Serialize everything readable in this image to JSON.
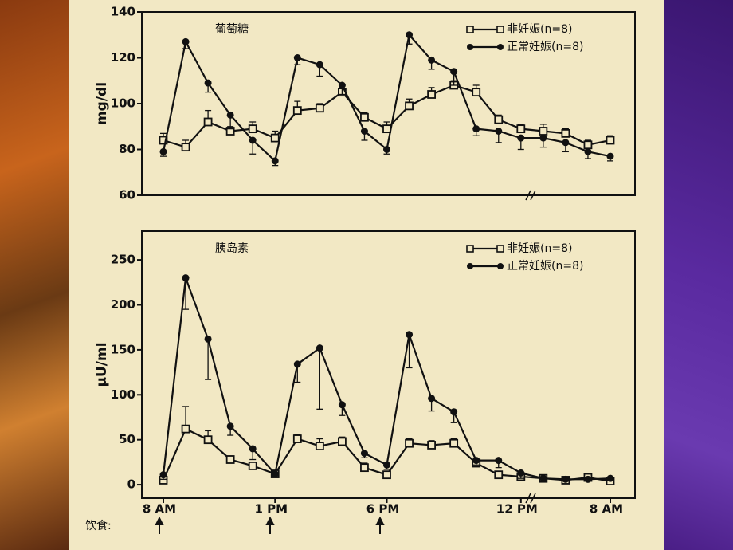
{
  "chart_data": [
    {
      "type": "line",
      "annotation": "葡萄糖",
      "y_label": "mg/dl",
      "categories": [
        null,
        null,
        null,
        null,
        null,
        null,
        null,
        null,
        null,
        null,
        null,
        null,
        null,
        null,
        null,
        null,
        null,
        null,
        null,
        null,
        null
      ],
      "ylim": [
        60,
        140
      ],
      "yticks": [
        60,
        80,
        100,
        120,
        140
      ],
      "series": [
        {
          "name": "非妊娠(n=8)",
          "color": "#111111",
          "marker": "square-open",
          "values": [
            84,
            81,
            92,
            88,
            89,
            85,
            97,
            98,
            105,
            94,
            89,
            99,
            104,
            108,
            105,
            93,
            89,
            88,
            87,
            82,
            84
          ],
          "errors": [
            3,
            3,
            5,
            2,
            3,
            3,
            4,
            2,
            3,
            2,
            3,
            3,
            3,
            2,
            3,
            2,
            2,
            3,
            2,
            2,
            2
          ]
        },
        {
          "name": "正常妊娠(n=8)",
          "color": "#111111",
          "marker": "circle-filled",
          "values": [
            79,
            127,
            109,
            95,
            84,
            75,
            120,
            117,
            108,
            88,
            80,
            130,
            119,
            114,
            89,
            88,
            85,
            85,
            83,
            79,
            77
          ],
          "errors": [
            2,
            3,
            4,
            6,
            6,
            2,
            3,
            5,
            4,
            4,
            2,
            4,
            4,
            6,
            3,
            5,
            5,
            4,
            4,
            3,
            2
          ]
        }
      ]
    },
    {
      "type": "line",
      "annotation": "胰岛素",
      "y_label": "μU/ml",
      "meal_label": "饮食:",
      "categories": [
        "8 AM",
        null,
        null,
        null,
        null,
        "1 PM",
        null,
        null,
        null,
        null,
        "6 PM",
        null,
        null,
        null,
        null,
        null,
        "12 PM",
        null,
        null,
        null,
        "8 AM"
      ],
      "ylim": [
        -15,
        282
      ],
      "yticks": [
        0,
        50,
        100,
        150,
        200,
        250
      ],
      "series": [
        {
          "name": "非妊娠(n=8)",
          "color": "#111111",
          "marker": "square-open",
          "values": [
            5,
            62,
            50,
            28,
            21,
            12,
            51,
            43,
            48,
            19,
            11,
            46,
            44,
            46,
            24,
            11,
            9,
            7,
            5,
            8,
            4
          ],
          "errors": [
            5,
            25,
            10,
            4,
            4,
            3,
            5,
            8,
            5,
            5,
            3,
            5,
            5,
            5,
            5,
            4,
            3,
            2,
            2,
            2,
            2
          ]
        },
        {
          "name": "正常妊娠(n=8)",
          "color": "#111111",
          "marker": "circle-filled",
          "values": [
            11,
            230,
            162,
            65,
            40,
            12,
            134,
            152,
            89,
            35,
            22,
            167,
            96,
            81,
            27,
            27,
            13,
            7,
            6,
            6,
            7
          ],
          "errors": [
            5,
            35,
            45,
            10,
            12,
            3,
            20,
            68,
            12,
            5,
            5,
            37,
            14,
            12,
            5,
            8,
            6,
            3,
            2,
            2,
            2
          ]
        }
      ]
    }
  ]
}
